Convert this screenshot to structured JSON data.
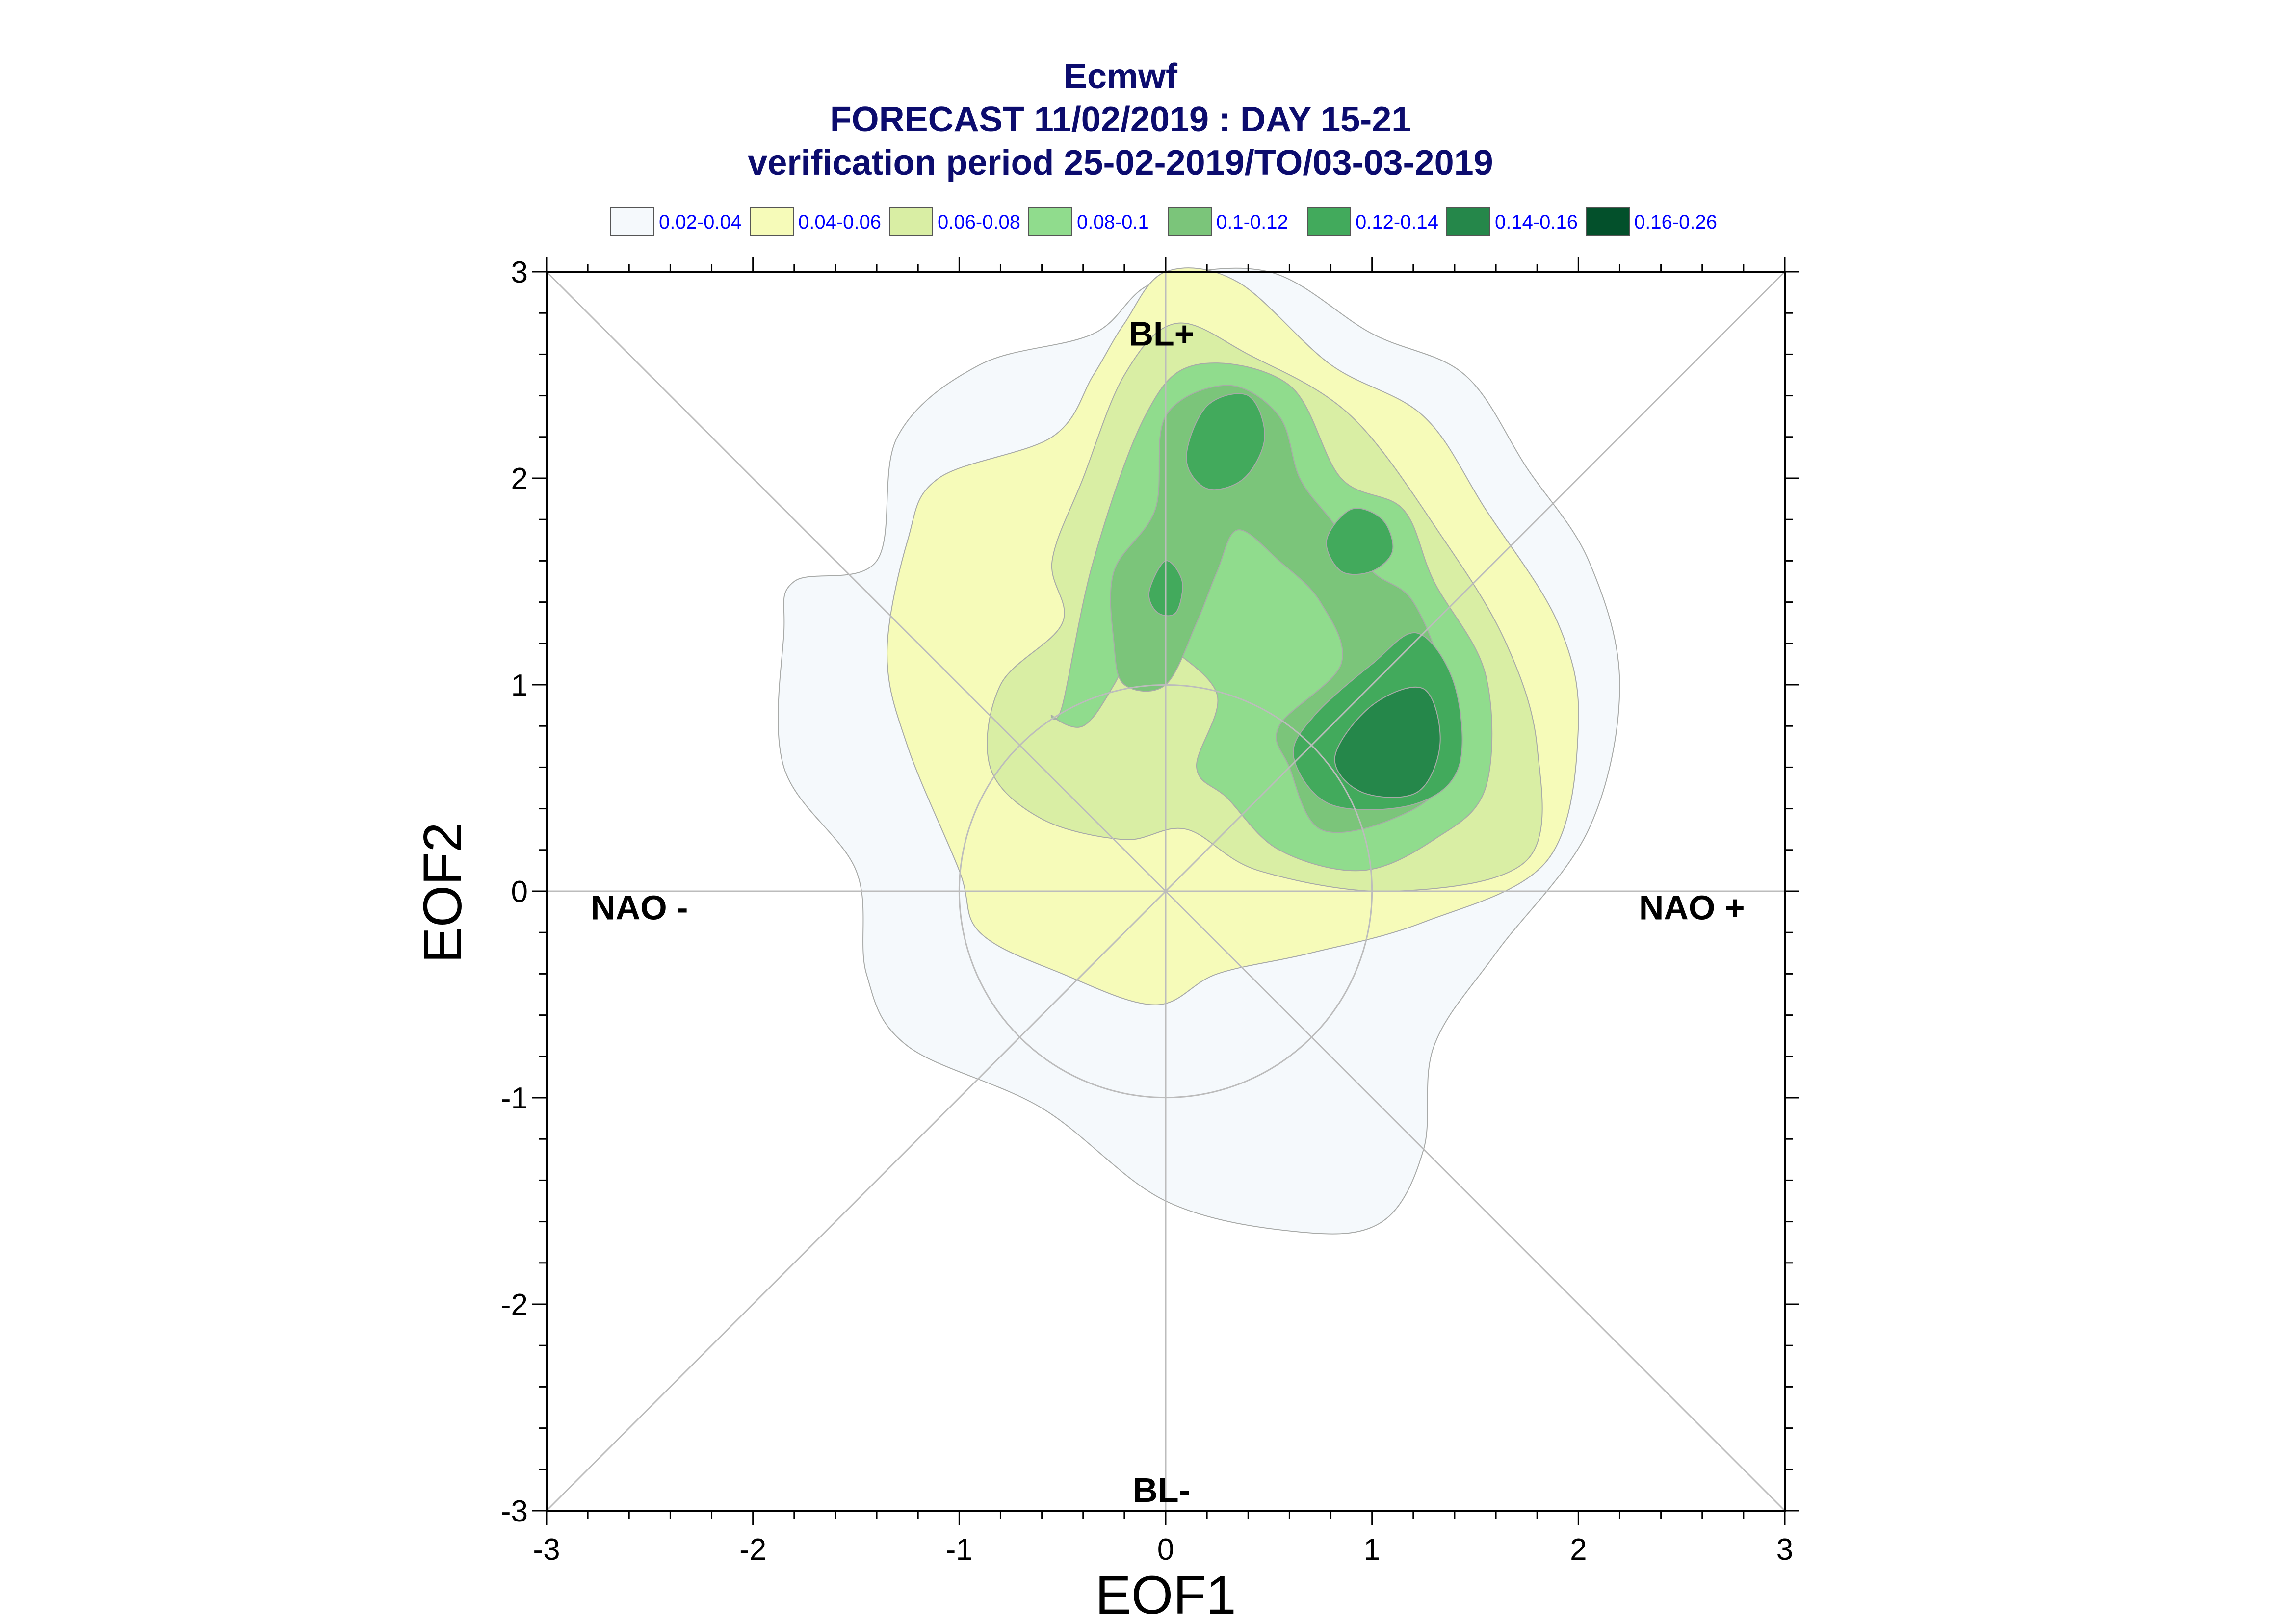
{
  "chart_data": {
    "type": "contour",
    "title_lines": [
      "Ecmwf",
      "FORECAST 11/02/2019 : DAY 15-21",
      "verification period 25-02-2019/TO/03-03-2019"
    ],
    "xlabel": "EOF1",
    "ylabel": "EOF2",
    "xlim": [
      -3,
      3
    ],
    "ylim": [
      -3,
      3
    ],
    "x_ticks": [
      -3,
      -2,
      -1,
      0,
      1,
      2,
      3
    ],
    "y_ticks": [
      -3,
      -2,
      -1,
      0,
      1,
      2,
      3
    ],
    "x_tick_labels": [
      "-3",
      "-2",
      "-1",
      "0",
      "1",
      "2",
      "3"
    ],
    "y_tick_labels": [
      "-3",
      "-2",
      "-1",
      "0",
      "1",
      "2",
      "3"
    ],
    "grid": false,
    "legend_position": "top",
    "legend": [
      {
        "label": "0.02-0.04",
        "color": "#f5f9fc"
      },
      {
        "label": "0.04-0.06",
        "color": "#f6fbb9"
      },
      {
        "label": "0.06-0.08",
        "color": "#d9eea4"
      },
      {
        "label": "0.08-0.1",
        "color": "#90dc8d"
      },
      {
        "label": "0.1-0.12",
        "color": "#7bc57a"
      },
      {
        "label": "0.12-0.14",
        "color": "#42aa5c"
      },
      {
        "label": "0.14-0.16",
        "color": "#25874a"
      },
      {
        "label": "0.16-0.26",
        "color": "#03502b"
      }
    ],
    "regime_labels": [
      {
        "text": "BL+",
        "x": -0.02,
        "y": 2.7
      },
      {
        "text": "BL-",
        "x": -0.02,
        "y": -2.9
      },
      {
        "text": "NAO -",
        "x": -2.55,
        "y": -0.08
      },
      {
        "text": "NAO +",
        "x": 2.55,
        "y": -0.08
      }
    ],
    "reference_circle_radius": 1,
    "contours": [
      {
        "level": "0.02-0.04",
        "color": "#f5f9fc",
        "points": [
          [
            -1.4,
            1.6
          ],
          [
            -1.3,
            2.2
          ],
          [
            -0.9,
            2.55
          ],
          [
            -0.35,
            2.7
          ],
          [
            -0.05,
            2.95
          ],
          [
            0.5,
            3.0
          ],
          [
            1.0,
            2.7
          ],
          [
            1.45,
            2.5
          ],
          [
            1.75,
            2.05
          ],
          [
            2.05,
            1.6
          ],
          [
            2.2,
            1.0
          ],
          [
            2.05,
            0.3
          ],
          [
            1.6,
            -0.3
          ],
          [
            1.3,
            -0.75
          ],
          [
            1.25,
            -1.25
          ],
          [
            1.05,
            -1.6
          ],
          [
            0.65,
            -1.65
          ],
          [
            0.0,
            -1.5
          ],
          [
            -0.6,
            -1.05
          ],
          [
            -1.25,
            -0.75
          ],
          [
            -1.45,
            -0.4
          ],
          [
            -1.5,
            0.1
          ],
          [
            -1.85,
            0.6
          ],
          [
            -1.85,
            1.25
          ],
          [
            -1.8,
            1.5
          ]
        ]
      },
      {
        "level": "0.04-0.06",
        "color": "#f6fbb9",
        "points": [
          [
            -1.25,
            1.7
          ],
          [
            -1.1,
            2.0
          ],
          [
            -0.55,
            2.2
          ],
          [
            -0.35,
            2.5
          ],
          [
            -0.2,
            2.75
          ],
          [
            0.0,
            3.0
          ],
          [
            0.35,
            2.95
          ],
          [
            0.8,
            2.55
          ],
          [
            1.25,
            2.3
          ],
          [
            1.55,
            1.85
          ],
          [
            1.9,
            1.3
          ],
          [
            2.0,
            0.8
          ],
          [
            1.85,
            0.15
          ],
          [
            1.25,
            -0.15
          ],
          [
            0.7,
            -0.3
          ],
          [
            0.25,
            -0.4
          ],
          [
            -0.05,
            -0.55
          ],
          [
            -0.5,
            -0.4
          ],
          [
            -0.9,
            -0.2
          ],
          [
            -1.0,
            0.1
          ],
          [
            -1.25,
            0.7
          ],
          [
            -1.35,
            1.15
          ]
        ]
      },
      {
        "level": "0.06-0.08",
        "color": "#d9eea4",
        "points": [
          [
            -0.5,
            1.3
          ],
          [
            -0.55,
            1.6
          ],
          [
            -0.4,
            2.0
          ],
          [
            -0.2,
            2.5
          ],
          [
            0.05,
            2.75
          ],
          [
            0.4,
            2.6
          ],
          [
            0.9,
            2.3
          ],
          [
            1.35,
            1.7
          ],
          [
            1.65,
            1.2
          ],
          [
            1.8,
            0.7
          ],
          [
            1.75,
            0.15
          ],
          [
            1.1,
            0.0
          ],
          [
            0.45,
            0.1
          ],
          [
            0.1,
            0.3
          ],
          [
            -0.2,
            0.25
          ],
          [
            -0.6,
            0.35
          ],
          [
            -0.85,
            0.6
          ],
          [
            -0.8,
            1.0
          ]
        ]
      },
      {
        "level": "0.08-0.1",
        "color": "#90dc8d",
        "points": [
          [
            -0.5,
            0.9
          ],
          [
            -0.35,
            1.6
          ],
          [
            -0.1,
            2.3
          ],
          [
            0.15,
            2.55
          ],
          [
            0.6,
            2.45
          ],
          [
            0.85,
            2.0
          ],
          [
            1.15,
            1.85
          ],
          [
            1.3,
            1.5
          ],
          [
            1.55,
            1.05
          ],
          [
            1.55,
            0.5
          ],
          [
            1.3,
            0.25
          ],
          [
            0.95,
            0.1
          ],
          [
            0.55,
            0.2
          ],
          [
            0.3,
            0.45
          ],
          [
            0.15,
            0.6
          ],
          [
            0.25,
            0.95
          ],
          [
            0.0,
            1.2
          ],
          [
            -0.1,
            1.3
          ],
          [
            -0.25,
            1.0
          ],
          [
            -0.4,
            0.8
          ],
          [
            -0.55,
            0.85
          ]
        ]
      },
      {
        "level": "0.1-0.12",
        "color": "#7bc57a",
        "points": [
          [
            -0.25,
            1.2
          ],
          [
            -0.25,
            1.55
          ],
          [
            -0.05,
            1.85
          ],
          [
            0.0,
            2.3
          ],
          [
            0.3,
            2.45
          ],
          [
            0.55,
            2.3
          ],
          [
            0.65,
            2.0
          ],
          [
            0.8,
            1.8
          ],
          [
            1.0,
            1.55
          ],
          [
            1.2,
            1.4
          ],
          [
            1.35,
            1.0
          ],
          [
            1.35,
            0.55
          ],
          [
            1.1,
            0.35
          ],
          [
            0.75,
            0.3
          ],
          [
            0.6,
            0.6
          ],
          [
            0.55,
            0.8
          ],
          [
            0.85,
            1.1
          ],
          [
            0.75,
            1.4
          ],
          [
            0.55,
            1.6
          ],
          [
            0.35,
            1.75
          ],
          [
            0.25,
            1.55
          ],
          [
            0.15,
            1.3
          ],
          [
            0.0,
            1.0
          ],
          [
            -0.2,
            1.0
          ]
        ]
      },
      {
        "level": "0.12-0.14",
        "color": "#42aa5c",
        "points": [
          [
            0.1,
            2.1
          ],
          [
            0.2,
            2.35
          ],
          [
            0.4,
            2.4
          ],
          [
            0.48,
            2.2
          ],
          [
            0.38,
            2.0
          ],
          [
            0.2,
            1.95
          ]
        ]
      },
      {
        "level": "0.12-0.14",
        "color": "#42aa5c",
        "points": [
          [
            0.78,
            1.7
          ],
          [
            0.9,
            1.85
          ],
          [
            1.05,
            1.8
          ],
          [
            1.1,
            1.65
          ],
          [
            1.0,
            1.55
          ],
          [
            0.85,
            1.55
          ]
        ]
      },
      {
        "level": "0.12-0.14",
        "color": "#42aa5c",
        "points": [
          [
            -0.08,
            1.45
          ],
          [
            0.0,
            1.6
          ],
          [
            0.08,
            1.5
          ],
          [
            0.05,
            1.35
          ],
          [
            -0.04,
            1.35
          ]
        ]
      },
      {
        "level": "0.12-0.14",
        "color": "#42aa5c",
        "points": [
          [
            0.62,
            0.65
          ],
          [
            0.72,
            0.85
          ],
          [
            1.0,
            1.1
          ],
          [
            1.22,
            1.25
          ],
          [
            1.4,
            1.0
          ],
          [
            1.42,
            0.6
          ],
          [
            1.2,
            0.42
          ],
          [
            0.8,
            0.42
          ]
        ]
      },
      {
        "level": "0.14-0.16",
        "color": "#25874a",
        "points": [
          [
            0.82,
            0.65
          ],
          [
            1.0,
            0.9
          ],
          [
            1.25,
            0.98
          ],
          [
            1.33,
            0.72
          ],
          [
            1.22,
            0.48
          ],
          [
            0.95,
            0.48
          ]
        ]
      }
    ]
  }
}
